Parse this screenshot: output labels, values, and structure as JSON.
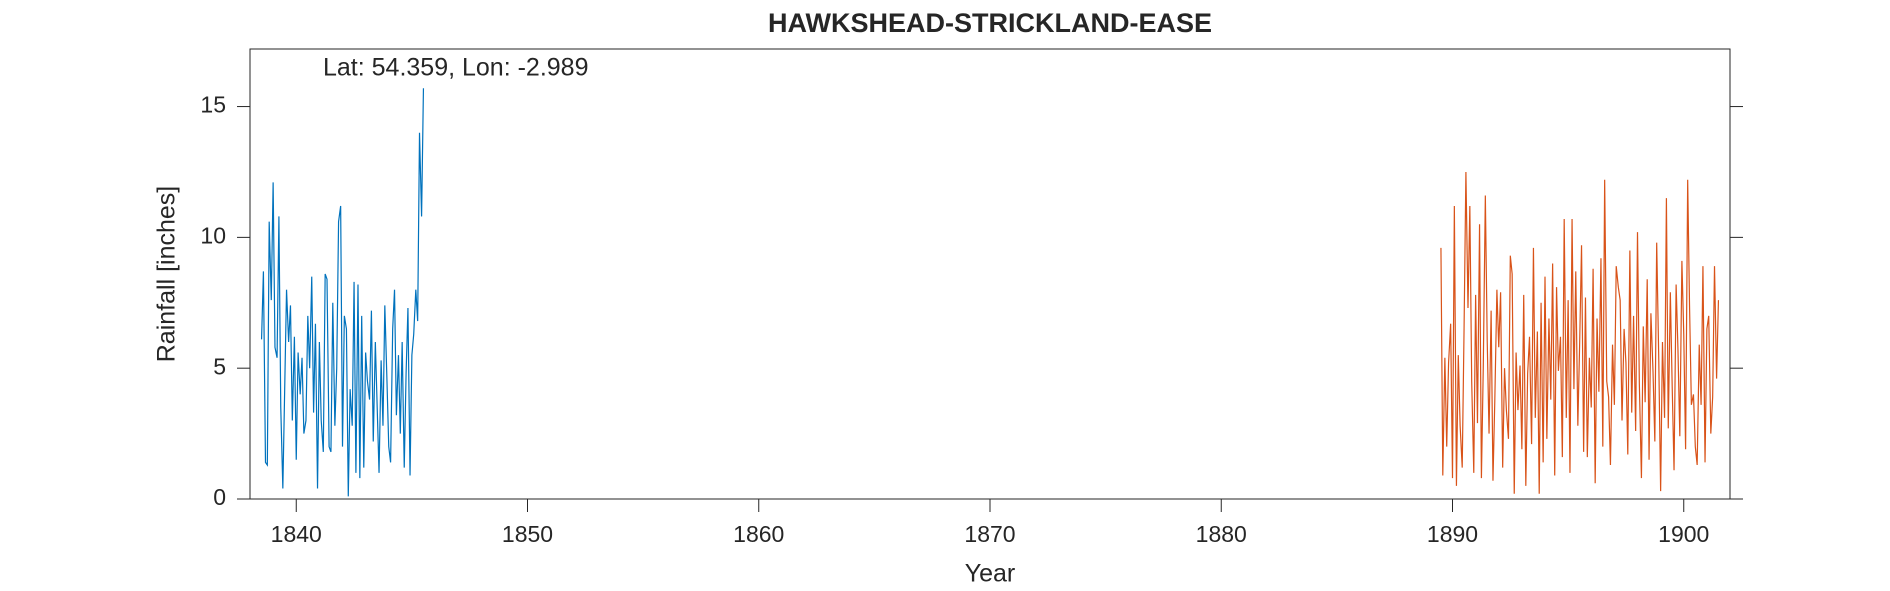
{
  "chart_data": {
    "type": "line",
    "title": "HAWKSHEAD-STRICKLAND-EASE",
    "annotation": "Lat: 54.359, Lon: -2.989",
    "xlabel": "Year",
    "ylabel": "Rainfall [inches]",
    "xlim": [
      1838,
      1902
    ],
    "ylim": [
      0,
      17.2
    ],
    "xticks": [
      1840,
      1850,
      1860,
      1870,
      1880,
      1890,
      1900
    ],
    "yticks": [
      0,
      5,
      10,
      15
    ],
    "series": [
      {
        "color": "#0072bd",
        "x": [
          1838.5,
          1838.58,
          1838.67,
          1838.75,
          1838.83,
          1838.92,
          1839.0,
          1839.08,
          1839.17,
          1839.25,
          1839.33,
          1839.42,
          1839.5,
          1839.58,
          1839.67,
          1839.75,
          1839.83,
          1839.92,
          1840.0,
          1840.08,
          1840.17,
          1840.25,
          1840.33,
          1840.42,
          1840.5,
          1840.58,
          1840.67,
          1840.75,
          1840.83,
          1840.92,
          1841.0,
          1841.08,
          1841.17,
          1841.25,
          1841.33,
          1841.42,
          1841.5,
          1841.58,
          1841.67,
          1841.75,
          1841.83,
          1841.92,
          1842.0,
          1842.08,
          1842.17,
          1842.25,
          1842.33,
          1842.42,
          1842.5,
          1842.58,
          1842.67,
          1842.75,
          1842.83,
          1842.92,
          1843.0,
          1843.08,
          1843.17,
          1843.25,
          1843.33,
          1843.42,
          1843.5,
          1843.58,
          1843.67,
          1843.75,
          1843.83,
          1843.92,
          1844.0,
          1844.08,
          1844.17,
          1844.25,
          1844.33,
          1844.42,
          1844.5,
          1844.58,
          1844.67,
          1844.75,
          1844.83,
          1844.92,
          1845.0,
          1845.08,
          1845.17,
          1845.25,
          1845.33,
          1845.42,
          1845.5
        ],
        "values": [
          6.1,
          8.7,
          1.4,
          1.3,
          10.6,
          7.6,
          12.1,
          5.8,
          5.4,
          10.8,
          3.5,
          0.4,
          4.2,
          8.0,
          6.0,
          7.4,
          3.0,
          6.2,
          1.5,
          5.6,
          4.0,
          5.4,
          2.5,
          3.0,
          7.0,
          5.0,
          8.5,
          3.3,
          6.7,
          0.4,
          6.0,
          3.0,
          1.8,
          8.6,
          8.4,
          2.0,
          1.8,
          7.5,
          2.8,
          5.0,
          10.6,
          11.2,
          2.0,
          7.0,
          6.5,
          0.1,
          4.2,
          2.8,
          8.3,
          1.0,
          8.2,
          0.8,
          7.0,
          1.2,
          5.6,
          4.5,
          3.8,
          7.2,
          2.2,
          6.0,
          3.5,
          1.0,
          5.3,
          2.8,
          7.4,
          4.6,
          2.0,
          1.4,
          6.5,
          8.0,
          3.2,
          5.5,
          2.5,
          6.0,
          1.2,
          4.8,
          7.3,
          0.9,
          5.5,
          6.3,
          8.0,
          6.8,
          14.0,
          10.8,
          15.7
        ]
      },
      {
        "color": "#d95319",
        "x": [
          1889.5,
          1889.58,
          1889.67,
          1889.75,
          1889.83,
          1889.92,
          1890.0,
          1890.08,
          1890.17,
          1890.25,
          1890.33,
          1890.42,
          1890.5,
          1890.58,
          1890.67,
          1890.75,
          1890.83,
          1890.92,
          1891.0,
          1891.08,
          1891.17,
          1891.25,
          1891.33,
          1891.42,
          1891.5,
          1891.58,
          1891.67,
          1891.75,
          1891.83,
          1891.92,
          1892.0,
          1892.08,
          1892.17,
          1892.25,
          1892.33,
          1892.42,
          1892.5,
          1892.58,
          1892.67,
          1892.75,
          1892.83,
          1892.92,
          1893.0,
          1893.08,
          1893.17,
          1893.25,
          1893.33,
          1893.42,
          1893.5,
          1893.58,
          1893.67,
          1893.75,
          1893.83,
          1893.92,
          1894.0,
          1894.08,
          1894.17,
          1894.25,
          1894.33,
          1894.42,
          1894.5,
          1894.58,
          1894.67,
          1894.75,
          1894.83,
          1894.92,
          1895.0,
          1895.08,
          1895.17,
          1895.25,
          1895.33,
          1895.42,
          1895.5,
          1895.58,
          1895.67,
          1895.75,
          1895.83,
          1895.92,
          1896.0,
          1896.08,
          1896.17,
          1896.25,
          1896.33,
          1896.42,
          1896.5,
          1896.58,
          1896.67,
          1896.75,
          1896.83,
          1896.92,
          1897.0,
          1897.08,
          1897.17,
          1897.25,
          1897.33,
          1897.42,
          1897.5,
          1897.58,
          1897.67,
          1897.75,
          1897.83,
          1897.92,
          1898.0,
          1898.08,
          1898.17,
          1898.25,
          1898.33,
          1898.42,
          1898.5,
          1898.58,
          1898.67,
          1898.75,
          1898.83,
          1898.92,
          1899.0,
          1899.08,
          1899.17,
          1899.25,
          1899.33,
          1899.42,
          1899.5,
          1899.58,
          1899.67,
          1899.75,
          1899.83,
          1899.92,
          1900.0,
          1900.08,
          1900.17,
          1900.25,
          1900.33,
          1900.42,
          1900.5,
          1900.58,
          1900.67,
          1900.75,
          1900.83,
          1900.92,
          1901.0,
          1901.08,
          1901.17,
          1901.25,
          1901.33,
          1901.42,
          1901.5
        ],
        "values": [
          9.6,
          0.9,
          5.4,
          2.0,
          5.2,
          6.7,
          0.8,
          11.2,
          0.5,
          5.5,
          2.8,
          1.2,
          6.5,
          12.5,
          7.3,
          11.2,
          4.5,
          1.0,
          7.8,
          2.9,
          10.5,
          0.8,
          5.0,
          11.6,
          6.1,
          2.5,
          7.2,
          0.7,
          3.8,
          8.0,
          5.8,
          7.9,
          1.2,
          5.0,
          3.4,
          2.3,
          9.3,
          8.6,
          0.2,
          5.6,
          3.4,
          5.1,
          1.9,
          7.8,
          0.5,
          4.8,
          6.2,
          2.1,
          9.6,
          3.1,
          6.4,
          0.2,
          7.5,
          1.4,
          8.5,
          2.3,
          6.9,
          3.8,
          9.0,
          0.9,
          8.1,
          4.9,
          6.2,
          1.6,
          10.7,
          3.1,
          7.6,
          1.0,
          10.7,
          4.2,
          8.7,
          2.8,
          6.0,
          9.7,
          1.8,
          7.7,
          1.6,
          5.4,
          3.5,
          8.8,
          0.6,
          6.9,
          4.1,
          9.2,
          2.0,
          12.2,
          4.5,
          3.9,
          1.3,
          5.9,
          3.6,
          8.9,
          8.1,
          7.6,
          3.0,
          6.5,
          5.2,
          1.7,
          9.5,
          3.3,
          7.0,
          2.6,
          10.2,
          4.4,
          0.8,
          6.6,
          3.7,
          8.4,
          1.5,
          7.1,
          4.9,
          2.2,
          9.8,
          5.3,
          0.3,
          6.0,
          3.1,
          11.5,
          2.7,
          7.9,
          4.3,
          1.1,
          8.2,
          5.7,
          2.4,
          9.1,
          6.3,
          1.9,
          12.2,
          7.4,
          3.6,
          4.0,
          2.0,
          1.3,
          5.9,
          3.6,
          8.9,
          1.4,
          6.5,
          7.0,
          2.5,
          3.9,
          8.9,
          4.6,
          7.6
        ]
      }
    ]
  }
}
